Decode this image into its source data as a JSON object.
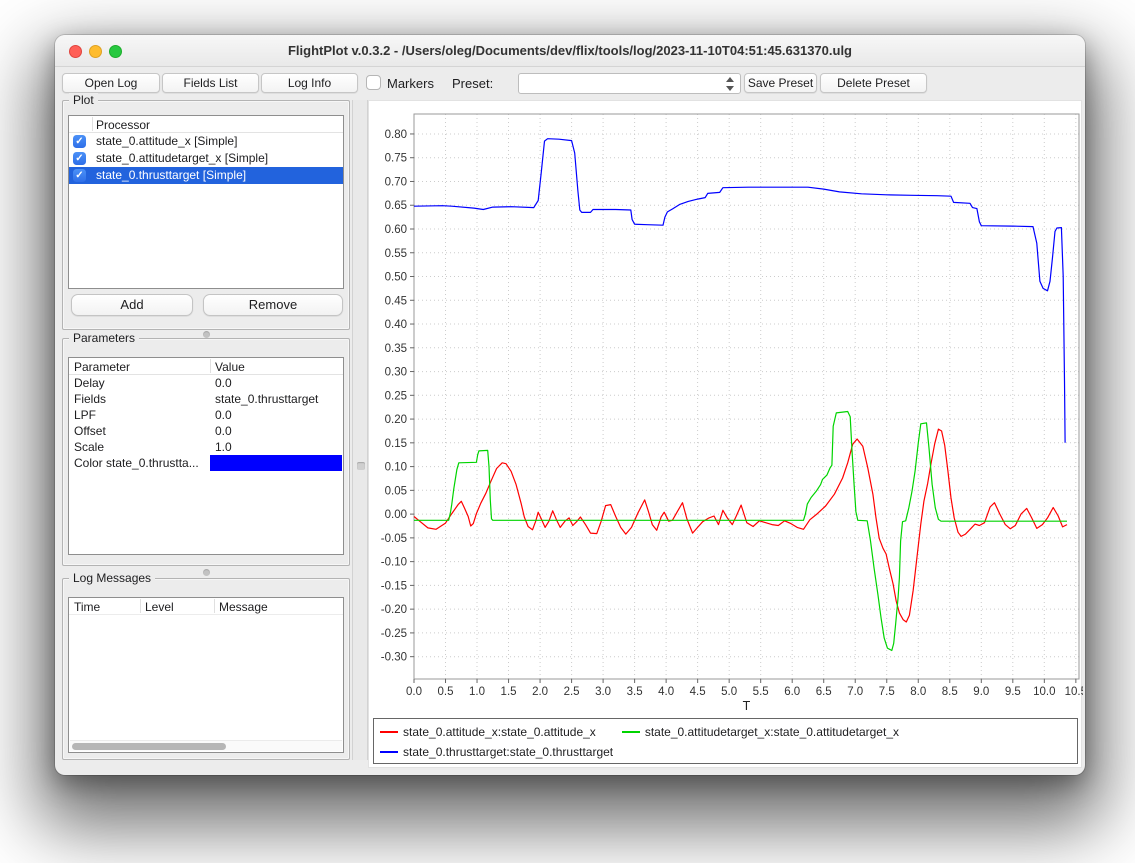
{
  "window": {
    "title": "FlightPlot v.0.3.2 - /Users/oleg/Documents/dev/flix/tools/log/2023-11-10T04:51:45.631370.ulg"
  },
  "toolbar": {
    "open_log": "Open Log",
    "fields_list": "Fields List",
    "log_info": "Log Info",
    "markers_label": "Markers",
    "markers_checked": false,
    "preset_label": "Preset:",
    "preset_value": "",
    "save_preset": "Save Preset",
    "delete_preset": "Delete Preset"
  },
  "plot_panel": {
    "title": "Plot",
    "column_header": "Processor",
    "rows": [
      {
        "label": "state_0.attitude_x [Simple]",
        "checked": true,
        "selected": false
      },
      {
        "label": "state_0.attitudetarget_x [Simple]",
        "checked": true,
        "selected": false
      },
      {
        "label": "state_0.thrusttarget [Simple]",
        "checked": true,
        "selected": true
      }
    ],
    "add_label": "Add",
    "remove_label": "Remove"
  },
  "parameters_panel": {
    "title": "Parameters",
    "columns": [
      "Parameter",
      "Value"
    ],
    "rows": [
      {
        "label": "Delay",
        "value": "0.0"
      },
      {
        "label": "Fields",
        "value": "state_0.thrusttarget"
      },
      {
        "label": "LPF",
        "value": "0.0"
      },
      {
        "label": "Offset",
        "value": "0.0"
      },
      {
        "label": "Scale",
        "value": "1.0"
      }
    ],
    "color_row": {
      "label": "Color state_0.thrustta...",
      "color": "#0000ff"
    }
  },
  "log_messages_panel": {
    "title": "Log Messages",
    "columns": [
      "Time",
      "Level",
      "Message"
    ],
    "rows": []
  },
  "chart_data": {
    "type": "line",
    "title": "",
    "xlabel": "T",
    "ylabel": "",
    "grid": true,
    "legend_position": "bottom",
    "xlim": [
      0,
      10.55
    ],
    "ylim": [
      -0.347,
      0.842
    ],
    "xticks": [
      0.0,
      0.5,
      1.0,
      1.5,
      2.0,
      2.5,
      3.0,
      3.5,
      4.0,
      4.5,
      5.0,
      5.5,
      6.0,
      6.5,
      7.0,
      7.5,
      8.0,
      8.5,
      9.0,
      9.5,
      10.0,
      10.5
    ],
    "yticks": [
      0.8,
      0.75,
      0.7,
      0.65,
      0.6,
      0.55,
      0.5,
      0.45,
      0.4,
      0.35,
      0.3,
      0.25,
      0.2,
      0.15,
      0.1,
      0.05,
      0.0,
      -0.05,
      -0.1,
      -0.15,
      -0.2,
      -0.25,
      -0.3
    ],
    "series": [
      {
        "name": "state_0.attitude_x:state_0.attitude_x",
        "color": "#ff0000",
        "points": [
          [
            0.0,
            -0.005
          ],
          [
            0.1,
            -0.016
          ],
          [
            0.22,
            -0.029
          ],
          [
            0.35,
            -0.032
          ],
          [
            0.5,
            -0.019
          ],
          [
            0.6,
            0.001
          ],
          [
            0.7,
            0.02
          ],
          [
            0.75,
            0.027
          ],
          [
            0.8,
            0.013
          ],
          [
            0.86,
            -0.005
          ],
          [
            0.9,
            -0.025
          ],
          [
            0.94,
            -0.02
          ],
          [
            0.99,
            0.001
          ],
          [
            1.06,
            0.023
          ],
          [
            1.14,
            0.044
          ],
          [
            1.22,
            0.069
          ],
          [
            1.31,
            0.096
          ],
          [
            1.4,
            0.108
          ],
          [
            1.46,
            0.106
          ],
          [
            1.54,
            0.09
          ],
          [
            1.62,
            0.062
          ],
          [
            1.7,
            0.022
          ],
          [
            1.75,
            -0.006
          ],
          [
            1.81,
            -0.026
          ],
          [
            1.88,
            -0.033
          ],
          [
            1.93,
            -0.015
          ],
          [
            1.97,
            0.004
          ],
          [
            2.02,
            -0.01
          ],
          [
            2.08,
            -0.028
          ],
          [
            2.14,
            -0.015
          ],
          [
            2.2,
            0.007
          ],
          [
            2.26,
            -0.012
          ],
          [
            2.32,
            -0.028
          ],
          [
            2.4,
            -0.014
          ],
          [
            2.46,
            -0.008
          ],
          [
            2.52,
            -0.024
          ],
          [
            2.58,
            -0.016
          ],
          [
            2.64,
            -0.006
          ],
          [
            2.72,
            -0.022
          ],
          [
            2.8,
            -0.04
          ],
          [
            2.9,
            -0.041
          ],
          [
            2.97,
            -0.015
          ],
          [
            3.04,
            0.018
          ],
          [
            3.12,
            0.02
          ],
          [
            3.2,
            -0.005
          ],
          [
            3.28,
            -0.028
          ],
          [
            3.36,
            -0.042
          ],
          [
            3.45,
            -0.028
          ],
          [
            3.55,
            0.002
          ],
          [
            3.66,
            0.03
          ],
          [
            3.72,
            0.005
          ],
          [
            3.78,
            -0.022
          ],
          [
            3.85,
            -0.034
          ],
          [
            3.92,
            -0.006
          ],
          [
            3.97,
            0.004
          ],
          [
            4.04,
            -0.015
          ],
          [
            4.1,
            -0.013
          ],
          [
            4.18,
            0.006
          ],
          [
            4.26,
            0.024
          ],
          [
            4.33,
            -0.01
          ],
          [
            4.42,
            -0.04
          ],
          [
            4.5,
            -0.028
          ],
          [
            4.58,
            -0.016
          ],
          [
            4.68,
            -0.008
          ],
          [
            4.76,
            -0.004
          ],
          [
            4.83,
            -0.022
          ],
          [
            4.9,
            0.008
          ],
          [
            4.97,
            -0.008
          ],
          [
            5.05,
            -0.022
          ],
          [
            5.12,
            -0.002
          ],
          [
            5.19,
            0.019
          ],
          [
            5.28,
            -0.018
          ],
          [
            5.38,
            -0.026
          ],
          [
            5.48,
            -0.014
          ],
          [
            5.58,
            -0.018
          ],
          [
            5.68,
            -0.022
          ],
          [
            5.78,
            -0.024
          ],
          [
            5.88,
            -0.014
          ],
          [
            5.98,
            -0.02
          ],
          [
            6.08,
            -0.028
          ],
          [
            6.18,
            -0.032
          ],
          [
            6.28,
            -0.012
          ],
          [
            6.4,
            0.001
          ],
          [
            6.53,
            0.017
          ],
          [
            6.67,
            0.042
          ],
          [
            6.8,
            0.076
          ],
          [
            6.88,
            0.108
          ],
          [
            6.96,
            0.147
          ],
          [
            7.03,
            0.158
          ],
          [
            7.12,
            0.143
          ],
          [
            7.2,
            0.097
          ],
          [
            7.28,
            0.042
          ],
          [
            7.33,
            -0.008
          ],
          [
            7.38,
            -0.051
          ],
          [
            7.44,
            -0.072
          ],
          [
            7.49,
            -0.084
          ],
          [
            7.54,
            -0.114
          ],
          [
            7.6,
            -0.147
          ],
          [
            7.65,
            -0.183
          ],
          [
            7.7,
            -0.208
          ],
          [
            7.76,
            -0.222
          ],
          [
            7.81,
            -0.227
          ],
          [
            7.86,
            -0.213
          ],
          [
            7.92,
            -0.16
          ],
          [
            7.98,
            -0.09
          ],
          [
            8.04,
            -0.021
          ],
          [
            8.09,
            0.027
          ],
          [
            8.15,
            0.065
          ],
          [
            8.2,
            0.105
          ],
          [
            8.26,
            0.148
          ],
          [
            8.32,
            0.179
          ],
          [
            8.37,
            0.175
          ],
          [
            8.42,
            0.145
          ],
          [
            8.47,
            0.091
          ],
          [
            8.52,
            0.034
          ],
          [
            8.57,
            -0.008
          ],
          [
            8.63,
            -0.038
          ],
          [
            8.68,
            -0.047
          ],
          [
            8.75,
            -0.042
          ],
          [
            8.83,
            -0.031
          ],
          [
            8.9,
            -0.021
          ],
          [
            8.97,
            -0.024
          ],
          [
            9.05,
            -0.018
          ],
          [
            9.14,
            0.015
          ],
          [
            9.21,
            0.024
          ],
          [
            9.29,
            0.001
          ],
          [
            9.38,
            -0.022
          ],
          [
            9.46,
            -0.031
          ],
          [
            9.54,
            -0.024
          ],
          [
            9.63,
            0.0
          ],
          [
            9.72,
            0.012
          ],
          [
            9.8,
            -0.008
          ],
          [
            9.88,
            -0.03
          ],
          [
            9.97,
            -0.022
          ],
          [
            10.05,
            -0.008
          ],
          [
            10.14,
            0.014
          ],
          [
            10.22,
            -0.004
          ],
          [
            10.29,
            -0.027
          ],
          [
            10.36,
            -0.022
          ]
        ]
      },
      {
        "name": "state_0.attitudetarget_x:state_0.attitudetarget_x",
        "color": "#00d400",
        "points": [
          [
            0.0,
            -0.013
          ],
          [
            0.55,
            -0.013
          ],
          [
            0.58,
            0.005
          ],
          [
            0.6,
            0.021
          ],
          [
            0.63,
            0.052
          ],
          [
            0.66,
            0.077
          ],
          [
            0.68,
            0.094
          ],
          [
            0.71,
            0.108
          ],
          [
            0.99,
            0.109
          ],
          [
            1.01,
            0.125
          ],
          [
            1.03,
            0.133
          ],
          [
            1.17,
            0.134
          ],
          [
            1.19,
            0.1
          ],
          [
            1.21,
            0.03
          ],
          [
            1.23,
            -0.01
          ],
          [
            1.25,
            -0.013
          ],
          [
            6.18,
            -0.013
          ],
          [
            6.21,
            0.0
          ],
          [
            6.24,
            0.021
          ],
          [
            6.3,
            0.035
          ],
          [
            6.38,
            0.048
          ],
          [
            6.45,
            0.062
          ],
          [
            6.48,
            0.073
          ],
          [
            6.55,
            0.082
          ],
          [
            6.6,
            0.097
          ],
          [
            6.63,
            0.103
          ],
          [
            6.65,
            0.185
          ],
          [
            6.7,
            0.213
          ],
          [
            6.88,
            0.216
          ],
          [
            6.92,
            0.205
          ],
          [
            6.95,
            0.13
          ],
          [
            6.98,
            0.065
          ],
          [
            7.01,
            0.005
          ],
          [
            7.04,
            -0.013
          ],
          [
            7.19,
            -0.014
          ],
          [
            7.24,
            -0.055
          ],
          [
            7.3,
            -0.114
          ],
          [
            7.36,
            -0.169
          ],
          [
            7.41,
            -0.219
          ],
          [
            7.46,
            -0.261
          ],
          [
            7.51,
            -0.282
          ],
          [
            7.58,
            -0.287
          ],
          [
            7.61,
            -0.272
          ],
          [
            7.64,
            -0.232
          ],
          [
            7.68,
            -0.175
          ],
          [
            7.7,
            -0.134
          ],
          [
            7.72,
            -0.057
          ],
          [
            7.75,
            -0.016
          ],
          [
            7.8,
            -0.014
          ],
          [
            7.85,
            0.013
          ],
          [
            7.9,
            0.048
          ],
          [
            7.95,
            0.091
          ],
          [
            8.0,
            0.15
          ],
          [
            8.04,
            0.19
          ],
          [
            8.13,
            0.192
          ],
          [
            8.17,
            0.139
          ],
          [
            8.22,
            0.063
          ],
          [
            8.27,
            0.013
          ],
          [
            8.32,
            -0.011
          ],
          [
            8.36,
            -0.015
          ],
          [
            10.36,
            -0.015
          ]
        ]
      },
      {
        "name": "state_0.thrusttarget:state_0.thrusttarget",
        "color": "#0000ff",
        "points": [
          [
            0.0,
            0.648
          ],
          [
            0.45,
            0.649
          ],
          [
            0.6,
            0.648
          ],
          [
            0.95,
            0.644
          ],
          [
            1.1,
            0.641
          ],
          [
            1.25,
            0.646
          ],
          [
            1.55,
            0.647
          ],
          [
            1.9,
            0.645
          ],
          [
            1.97,
            0.66
          ],
          [
            2.02,
            0.72
          ],
          [
            2.07,
            0.785
          ],
          [
            2.12,
            0.79
          ],
          [
            2.3,
            0.789
          ],
          [
            2.5,
            0.786
          ],
          [
            2.55,
            0.76
          ],
          [
            2.6,
            0.68
          ],
          [
            2.63,
            0.64
          ],
          [
            2.66,
            0.635
          ],
          [
            2.8,
            0.635
          ],
          [
            2.84,
            0.641
          ],
          [
            3.2,
            0.641
          ],
          [
            3.44,
            0.64
          ],
          [
            3.46,
            0.62
          ],
          [
            3.5,
            0.61
          ],
          [
            3.7,
            0.609
          ],
          [
            3.95,
            0.608
          ],
          [
            3.98,
            0.625
          ],
          [
            4.02,
            0.636
          ],
          [
            4.1,
            0.642
          ],
          [
            4.22,
            0.652
          ],
          [
            4.35,
            0.658
          ],
          [
            4.5,
            0.663
          ],
          [
            4.62,
            0.666
          ],
          [
            4.66,
            0.675
          ],
          [
            4.85,
            0.677
          ],
          [
            4.9,
            0.687
          ],
          [
            5.3,
            0.688
          ],
          [
            6.25,
            0.688
          ],
          [
            6.5,
            0.684
          ],
          [
            6.75,
            0.678
          ],
          [
            7.1,
            0.674
          ],
          [
            7.5,
            0.672
          ],
          [
            7.9,
            0.671
          ],
          [
            8.3,
            0.67
          ],
          [
            8.52,
            0.669
          ],
          [
            8.56,
            0.656
          ],
          [
            8.82,
            0.654
          ],
          [
            8.86,
            0.645
          ],
          [
            8.93,
            0.643
          ],
          [
            8.97,
            0.615
          ],
          [
            9.0,
            0.607
          ],
          [
            9.5,
            0.606
          ],
          [
            9.82,
            0.605
          ],
          [
            9.88,
            0.57
          ],
          [
            9.93,
            0.49
          ],
          [
            9.98,
            0.475
          ],
          [
            10.05,
            0.47
          ],
          [
            10.09,
            0.49
          ],
          [
            10.13,
            0.54
          ],
          [
            10.17,
            0.595
          ],
          [
            10.2,
            0.602
          ],
          [
            10.27,
            0.603
          ],
          [
            10.3,
            0.5
          ],
          [
            10.32,
            0.28
          ],
          [
            10.33,
            0.15
          ]
        ]
      }
    ]
  }
}
